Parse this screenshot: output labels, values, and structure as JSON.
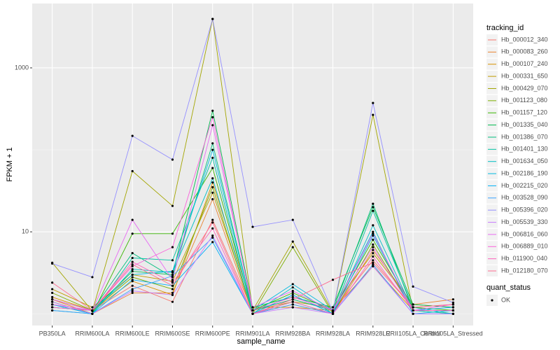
{
  "chart_data": {
    "type": "line",
    "x_label": "sample_name",
    "y_label": "FPKM + 1",
    "y_log": true,
    "ylim": [
      0.72,
      6100
    ],
    "yticks": [
      10,
      1000
    ],
    "y_minor_grid": [
      1,
      100
    ],
    "grid": true,
    "legend_title": "tracking_id",
    "legend_position": "right",
    "point_legend_title": "quant_status",
    "point_legend_labels": [
      "OK"
    ],
    "point_color": "#000000",
    "categories": [
      "PB350LA",
      "RRIM600LA",
      "RRIM600LE",
      "RRIM600SE",
      "RRIM600PE",
      "RRIM901LA",
      "RRIM928BA",
      "RRIM928LA",
      "RRIM928LE",
      "RRII105LA_Control",
      "RRII105LA_Stressed"
    ],
    "series": [
      {
        "name": "Hb_000012_340",
        "color": "#F8766D",
        "values": [
          1.3,
          1.1,
          2.2,
          1.4,
          14,
          1.1,
          1.5,
          1.1,
          4.5,
          1.2,
          1.3
        ]
      },
      {
        "name": "Hb_000083_260",
        "color": "#EA8331",
        "values": [
          1.5,
          1.0,
          1.8,
          1.8,
          25,
          1.0,
          1.3,
          1.0,
          6,
          1.3,
          1.5
        ]
      },
      {
        "name": "Hb_000107_240",
        "color": "#D89000",
        "values": [
          1.6,
          1.1,
          2.5,
          1.7,
          40,
          1.2,
          1.2,
          1.1,
          3.8,
          1.1,
          1.1
        ]
      },
      {
        "name": "Hb_000331_650",
        "color": "#C09B00",
        "values": [
          2.0,
          1.2,
          3.0,
          2.5,
          30,
          1.1,
          1.4,
          1.2,
          5.5,
          1.3,
          1.2
        ]
      },
      {
        "name": "Hb_000429_070",
        "color": "#A3A500",
        "values": [
          4.2,
          1.08,
          55,
          20.7,
          3950,
          1.1,
          7.6,
          1.05,
          267,
          1.1,
          1.1
        ]
      },
      {
        "name": "Hb_001123_080",
        "color": "#7CAE00",
        "values": [
          1.8,
          1.1,
          2.8,
          2.0,
          35,
          1.0,
          6.5,
          1.0,
          7.0,
          1.1,
          1.0
        ]
      },
      {
        "name": "Hb_001157_120",
        "color": "#39B600",
        "values": [
          1.4,
          1.0,
          9.5,
          9.5,
          60,
          1.1,
          1.8,
          1.1,
          8,
          1.2,
          1.1
        ]
      },
      {
        "name": "Hb_001335_040",
        "color": "#00BB4E",
        "values": [
          1.5,
          1.1,
          3.3,
          3.0,
          300,
          1.2,
          1.6,
          1.2,
          20,
          1.3,
          1.2
        ]
      },
      {
        "name": "Hb_001386_070",
        "color": "#00BF7D",
        "values": [
          1.2,
          1.1,
          5.5,
          2.8,
          120,
          1.1,
          1.5,
          1.1,
          22,
          1.1,
          1.1
        ]
      },
      {
        "name": "Hb_001401_130",
        "color": "#00C1A3",
        "values": [
          1.3,
          1.0,
          4.8,
          4.5,
          80,
          1.0,
          1.4,
          1.0,
          18,
          1.2,
          1.0
        ]
      },
      {
        "name": "Hb_001634_050",
        "color": "#00BFC4",
        "values": [
          1.1,
          1.0,
          3.5,
          3.2,
          45,
          1.0,
          2.1,
          1.0,
          12,
          1.1,
          1.0
        ]
      },
      {
        "name": "Hb_002186_190",
        "color": "#00BAE0",
        "values": [
          1.2,
          1.1,
          3.0,
          3.3,
          100,
          1.1,
          2.3,
          1.1,
          10,
          1.0,
          1.1
        ]
      },
      {
        "name": "Hb_002215_020",
        "color": "#00B0F6",
        "values": [
          1.3,
          1.0,
          2.6,
          2.2,
          7.5,
          1.0,
          1.7,
          1.0,
          9,
          1.1,
          1.2
        ]
      },
      {
        "name": "Hb_003528_090",
        "color": "#35A2FF",
        "values": [
          1.1,
          1.0,
          2.0,
          2.9,
          8.5,
          1.0,
          1.3,
          1.0,
          4,
          1.0,
          1.0
        ]
      },
      {
        "name": "Hb_005396_020",
        "color": "#9590FF",
        "values": [
          4.1,
          2.8,
          148,
          76,
          3950,
          11.5,
          14,
          1.06,
          373,
          2.15,
          1.37
        ]
      },
      {
        "name": "Hb_005539_330",
        "color": "#C77CFF",
        "values": [
          1.4,
          1.0,
          1.9,
          1.7,
          9,
          1.0,
          1.2,
          1.0,
          3.8,
          1.0,
          1.0
        ]
      },
      {
        "name": "Hb_006816_060",
        "color": "#E76BF3",
        "values": [
          1.3,
          1.1,
          14,
          2.6,
          200,
          1.2,
          1.9,
          1.1,
          6.5,
          1.1,
          1.3
        ]
      },
      {
        "name": "Hb_006889_010",
        "color": "#FA62DB",
        "values": [
          1.5,
          1.1,
          3.8,
          6.5,
          250,
          1.1,
          1.6,
          1.1,
          9.5,
          1.1,
          1.1
        ]
      },
      {
        "name": "Hb_011900_040",
        "color": "#FF62BC",
        "values": [
          1.2,
          1.1,
          4.3,
          2.4,
          11,
          1.0,
          1.4,
          1.0,
          5,
          1.1,
          1.1
        ]
      },
      {
        "name": "Hb_012180_070",
        "color": "#FF6C91",
        "values": [
          2.4,
          1.1,
          4.0,
          2.2,
          13,
          1.0,
          1.5,
          2.6,
          4.2,
          1.2,
          1.3
        ]
      }
    ]
  }
}
